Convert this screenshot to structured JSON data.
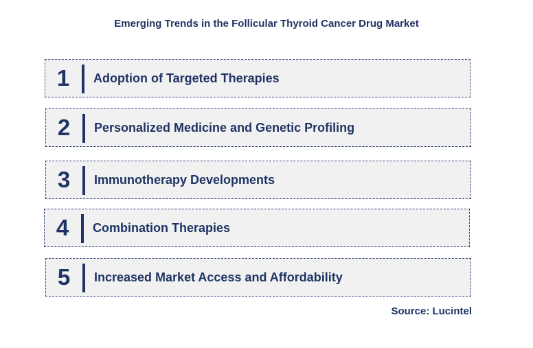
{
  "title": "Emerging Trends in the Follicular Thyroid Cancer Drug Market",
  "trends": [
    {
      "number": "1",
      "label": "Adoption of Targeted Therapies"
    },
    {
      "number": "2",
      "label": "Personalized Medicine and Genetic Profiling"
    },
    {
      "number": "3",
      "label": "Immunotherapy Developments"
    },
    {
      "number": "4",
      "label": "Combination Therapies"
    },
    {
      "number": "5",
      "label": "Increased Market Access and Affordability"
    }
  ],
  "source": "Source: Lucintel"
}
